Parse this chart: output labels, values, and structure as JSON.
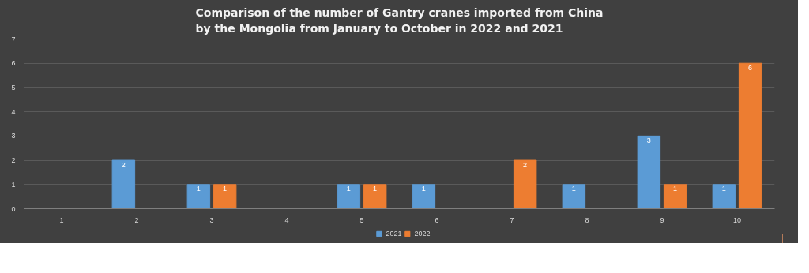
{
  "chart_data": {
    "type": "bar",
    "title": "Comparison of the number of Gantry cranes imported from China by the Mongolia from January to October in 2022 and 2021",
    "categories": [
      "1",
      "2",
      "3",
      "4",
      "5",
      "6",
      "7",
      "8",
      "9",
      "10"
    ],
    "series": [
      {
        "name": "2021",
        "color": "#5b9bd5",
        "values": [
          null,
          2,
          1,
          null,
          1,
          1,
          null,
          1,
          3,
          1
        ]
      },
      {
        "name": "2022",
        "color": "#ed7d31",
        "values": [
          null,
          null,
          1,
          null,
          1,
          null,
          2,
          null,
          1,
          6
        ]
      }
    ],
    "ylim": [
      0,
      7
    ],
    "yticks": [
      0,
      1,
      2,
      3,
      4,
      5,
      6,
      7
    ],
    "grid": "y",
    "legend": "bottom",
    "data_labels": true
  }
}
